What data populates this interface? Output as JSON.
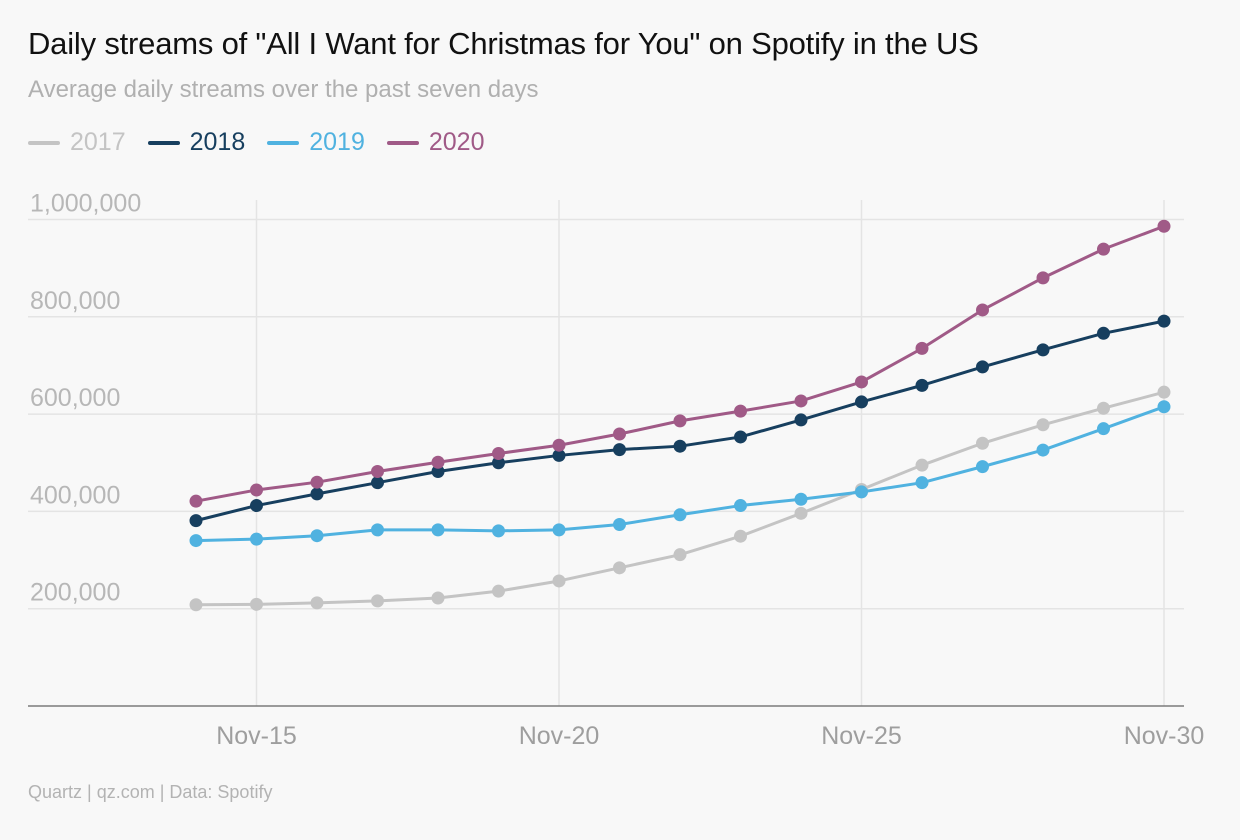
{
  "chart_data": {
    "type": "line",
    "title": "Daily streams of \"All I Want for Christmas for You\" on Spotify in the US",
    "subtitle": "Average daily streams over the past seven days",
    "xlabel": "",
    "ylabel": "",
    "x": [
      "Nov-14",
      "Nov-15",
      "Nov-16",
      "Nov-17",
      "Nov-18",
      "Nov-19",
      "Nov-20",
      "Nov-21",
      "Nov-22",
      "Nov-23",
      "Nov-24",
      "Nov-25",
      "Nov-26",
      "Nov-27",
      "Nov-28",
      "Nov-29",
      "Nov-30"
    ],
    "x_tick_labels": [
      "Nov-15",
      "Nov-20",
      "Nov-25",
      "Nov-30"
    ],
    "y_tick_labels": [
      "1,000,000",
      "800,000",
      "600,000",
      "400,000",
      "200,000"
    ],
    "y_ticks": [
      1000000,
      800000,
      600000,
      400000,
      200000
    ],
    "ylim": [
      0,
      1040000
    ],
    "grid": true,
    "legend_position": "top-left",
    "series": [
      {
        "name": "2017",
        "color": "#c4c4c4",
        "values": [
          208000,
          209000,
          212000,
          216000,
          222000,
          236000,
          257000,
          284000,
          311000,
          349000,
          396000,
          445000,
          495000,
          540000,
          578000,
          612000,
          645000
        ]
      },
      {
        "name": "2018",
        "color": "#173f5f",
        "values": [
          381000,
          412000,
          436000,
          459000,
          482000,
          500000,
          515000,
          527000,
          534000,
          553000,
          588000,
          625000,
          659000,
          697000,
          732000,
          766000,
          791000
        ]
      },
      {
        "name": "2019",
        "color": "#50b2e0",
        "values": [
          340000,
          343000,
          350000,
          362000,
          362000,
          360000,
          362000,
          373000,
          393000,
          412000,
          425000,
          440000,
          459000,
          492000,
          526000,
          570000,
          615000
        ]
      },
      {
        "name": "2020",
        "color": "#a05a87",
        "values": [
          421000,
          444000,
          460000,
          482000,
          501000,
          519000,
          536000,
          559000,
          586000,
          606000,
          627000,
          666000,
          735000,
          814000,
          880000,
          939000,
          986000
        ]
      }
    ]
  },
  "footer": "Quartz | qz.com | Data: Spotify"
}
